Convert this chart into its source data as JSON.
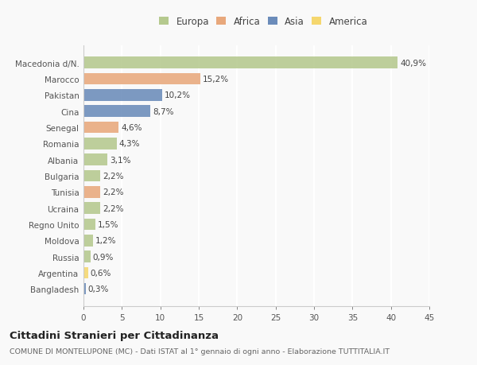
{
  "countries": [
    "Macedonia d/N.",
    "Marocco",
    "Pakistan",
    "Cina",
    "Senegal",
    "Romania",
    "Albania",
    "Bulgaria",
    "Tunisia",
    "Ucraina",
    "Regno Unito",
    "Moldova",
    "Russia",
    "Argentina",
    "Bangladesh"
  ],
  "values": [
    40.9,
    15.2,
    10.2,
    8.7,
    4.6,
    4.3,
    3.1,
    2.2,
    2.2,
    2.2,
    1.5,
    1.2,
    0.9,
    0.6,
    0.3
  ],
  "labels": [
    "40,9%",
    "15,2%",
    "10,2%",
    "8,7%",
    "4,6%",
    "4,3%",
    "3,1%",
    "2,2%",
    "2,2%",
    "2,2%",
    "1,5%",
    "1,2%",
    "0,9%",
    "0,6%",
    "0,3%"
  ],
  "colors": [
    "#b5c98e",
    "#e8a87c",
    "#6b8cba",
    "#6b8cba",
    "#e8a87c",
    "#b5c98e",
    "#b5c98e",
    "#b5c98e",
    "#e8a87c",
    "#b5c98e",
    "#b5c98e",
    "#b5c98e",
    "#b5c98e",
    "#f5d76e",
    "#6b8cba"
  ],
  "legend_labels": [
    "Europa",
    "Africa",
    "Asia",
    "America"
  ],
  "legend_colors": [
    "#b5c98e",
    "#e8a87c",
    "#6b8cba",
    "#f5d76e"
  ],
  "xlim": [
    0,
    45
  ],
  "xticks": [
    0,
    5,
    10,
    15,
    20,
    25,
    30,
    35,
    40,
    45
  ],
  "title": "Cittadini Stranieri per Cittadinanza",
  "subtitle": "COMUNE DI MONTELUPONE (MC) - Dati ISTAT al 1° gennaio di ogni anno - Elaborazione TUTTITALIA.IT",
  "background_color": "#f9f9f9",
  "bar_height": 0.72,
  "label_fontsize": 7.5,
  "tick_fontsize": 7.5,
  "legend_fontsize": 8.5
}
